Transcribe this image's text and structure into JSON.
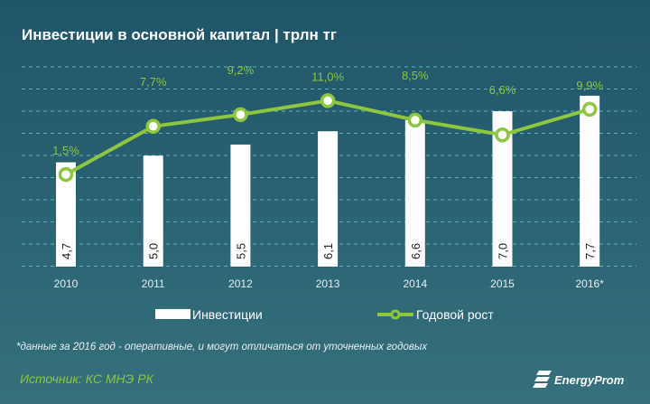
{
  "chart_data": {
    "type": "bar+line",
    "title": "Инвестиции в основной капитал | трлн тг",
    "categories": [
      "2010",
      "2011",
      "2012",
      "2013",
      "2014",
      "2015",
      "2016*"
    ],
    "series": [
      {
        "name": "Инвестиции",
        "type": "bar",
        "values": [
          4.7,
          5.0,
          5.5,
          6.1,
          6.6,
          7.0,
          7.7
        ],
        "labels": [
          "4,7",
          "5,0",
          "5,5",
          "6,1",
          "6,6",
          "7,0",
          "7,7"
        ],
        "color": "#ffffff"
      },
      {
        "name": "Годовой рост",
        "type": "line",
        "values": [
          1.5,
          7.7,
          9.2,
          11.0,
          8.5,
          6.6,
          9.9
        ],
        "labels": [
          "1,5%",
          "7,7%",
          "9,2%",
          "11,0%",
          "8,5%",
          "6,6%",
          "9,9%"
        ],
        "color": "#8dc63f"
      }
    ],
    "bar_ylim": [
      0,
      9
    ],
    "line_ylim": [
      0,
      24
    ],
    "grid": true,
    "legend": "bottom-center"
  },
  "footnote": "*данные за 2016 год - оперативные, и могут отличаться от уточненных годовых",
  "source": "Источник: КС МНЭ РК",
  "logo": "EnergyProm"
}
